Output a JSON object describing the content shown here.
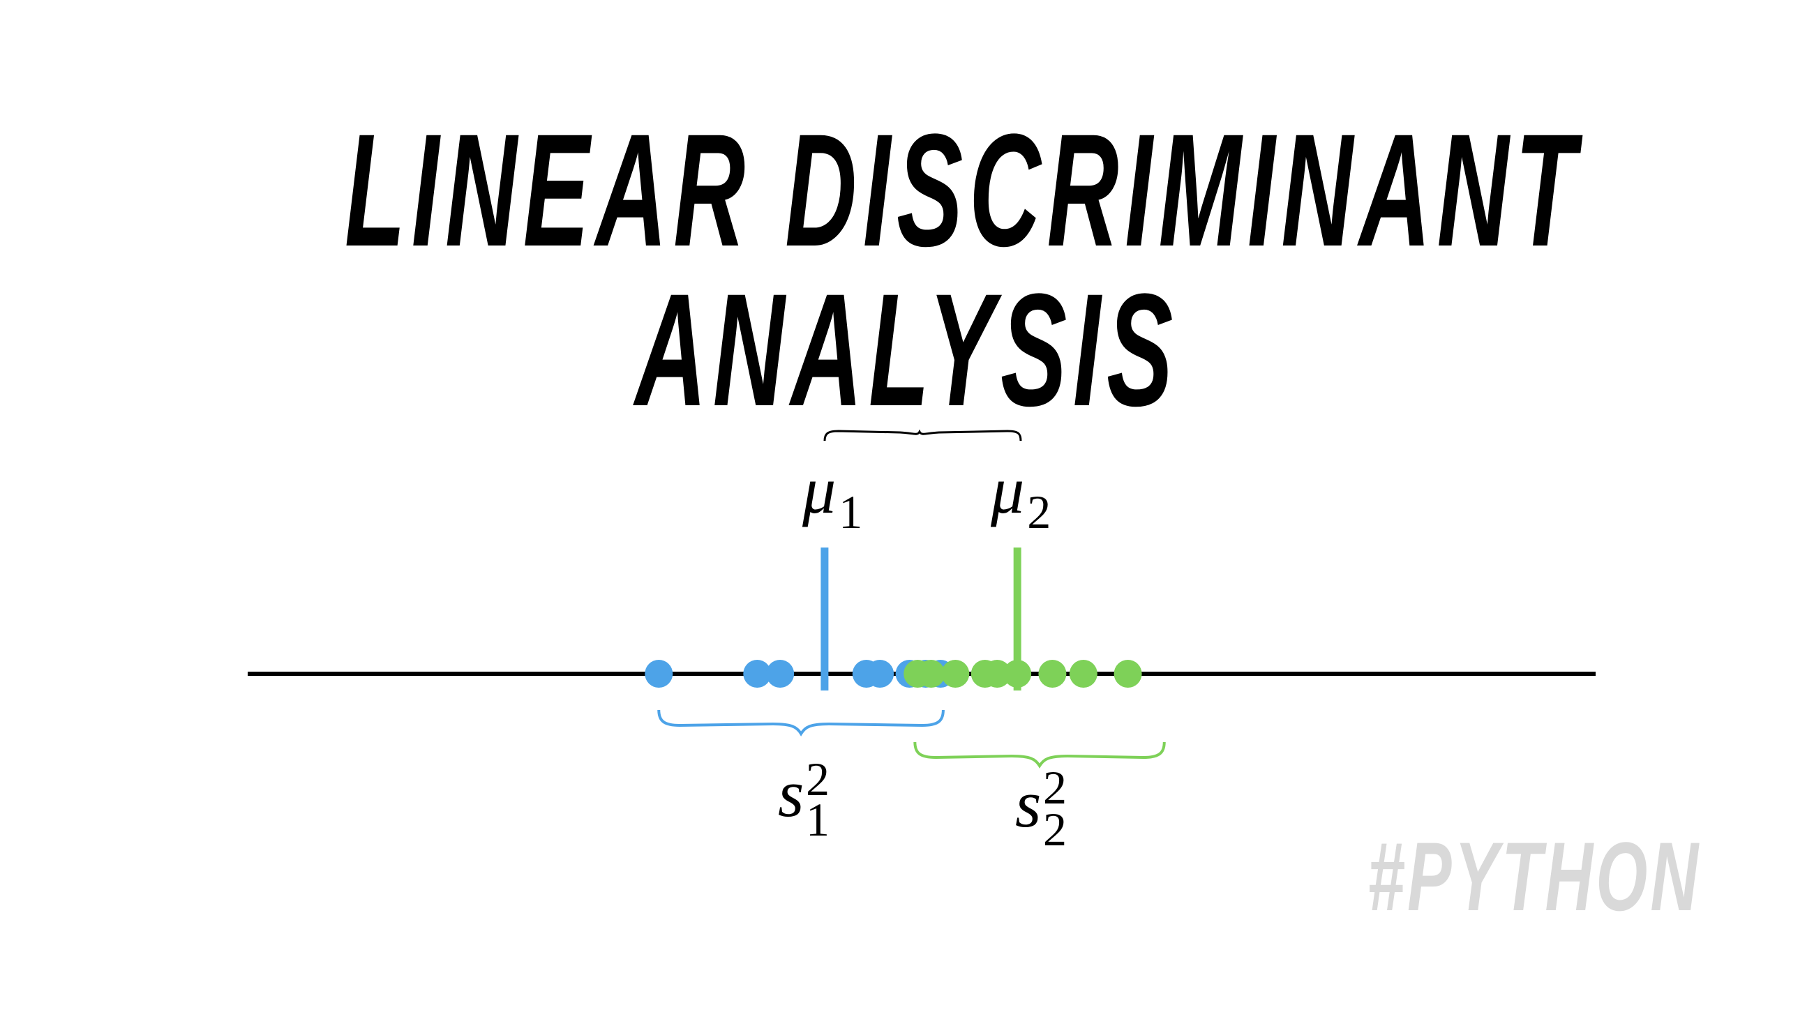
{
  "title": {
    "line1": "LINEAR DISCRIMINANT",
    "line2": "ANALYSIS"
  },
  "axis": {
    "color": "#000000"
  },
  "class1": {
    "color": "#4da3e8",
    "mean_symbol": "μ",
    "mean_subscript": "1",
    "variance_symbol": "s",
    "variance_superscript": "2",
    "variance_subscript": "1",
    "mean": 0.428,
    "spread": [
      0.305,
      0.516
    ],
    "points": [
      0.305,
      0.378,
      0.395,
      0.459,
      0.469,
      0.491,
      0.503,
      0.514
    ]
  },
  "class2": {
    "color": "#7ed158",
    "mean_symbol": "μ",
    "mean_subscript": "2",
    "variance_symbol": "s",
    "variance_superscript": "2",
    "variance_subscript": "2",
    "mean": 0.571,
    "spread": [
      0.495,
      0.68
    ],
    "points": [
      0.497,
      0.507,
      0.525,
      0.547,
      0.556,
      0.571,
      0.597,
      0.62,
      0.653
    ]
  },
  "hashtag": "#PYTHON"
}
